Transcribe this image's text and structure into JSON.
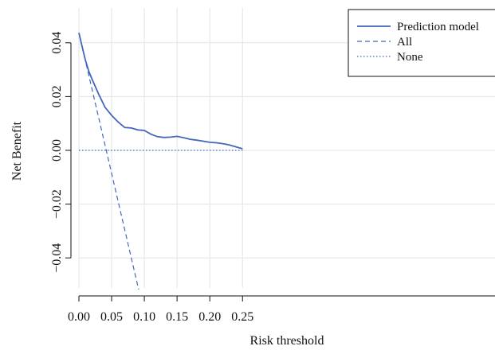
{
  "chart_data": {
    "type": "line",
    "title": "",
    "xlabel": "Risk threshold",
    "ylabel": "Net Benefit",
    "xlim": [
      0.0,
      0.25
    ],
    "ylim": [
      -0.055,
      0.05
    ],
    "grid": true,
    "legend_position": "top-right",
    "x_ticks": [
      0.0,
      0.05,
      0.1,
      0.15,
      0.2,
      0.25
    ],
    "x_tick_labels": [
      "0.00",
      "0.05",
      "0.10",
      "0.15",
      "0.20",
      "0.25"
    ],
    "y_ticks": [
      -0.04,
      -0.02,
      0.0,
      0.02,
      0.04
    ],
    "y_tick_labels": [
      "−0.04",
      "−0.02",
      "0.00",
      "0.02",
      "0.04"
    ],
    "series": [
      {
        "name": "Prediction model",
        "style": "solid",
        "color": "#4466bb",
        "x": [
          0.0,
          0.005,
          0.01,
          0.015,
          0.02,
          0.03,
          0.04,
          0.05,
          0.06,
          0.07,
          0.08,
          0.09,
          0.1,
          0.11,
          0.12,
          0.13,
          0.14,
          0.15,
          0.16,
          0.17,
          0.18,
          0.19,
          0.2,
          0.21,
          0.22,
          0.23,
          0.24,
          0.25
        ],
        "values": [
          0.0437,
          0.0385,
          0.0335,
          0.0295,
          0.0265,
          0.021,
          0.016,
          0.013,
          0.0105,
          0.0085,
          0.0083,
          0.0076,
          0.0074,
          0.006,
          0.0051,
          0.0048,
          0.0049,
          0.0052,
          0.0047,
          0.0041,
          0.0038,
          0.0034,
          0.003,
          0.0028,
          0.0025,
          0.002,
          0.0013,
          0.0006
        ]
      },
      {
        "name": "All",
        "style": "dashed",
        "color": "#4466bb",
        "x": [
          0.0,
          0.092
        ],
        "values": [
          0.0437,
          -0.0525
        ]
      },
      {
        "name": "None",
        "style": "dotted",
        "color": "#4466bb",
        "x": [
          0.0,
          0.25
        ],
        "values": [
          0.0,
          0.0
        ]
      }
    ]
  }
}
